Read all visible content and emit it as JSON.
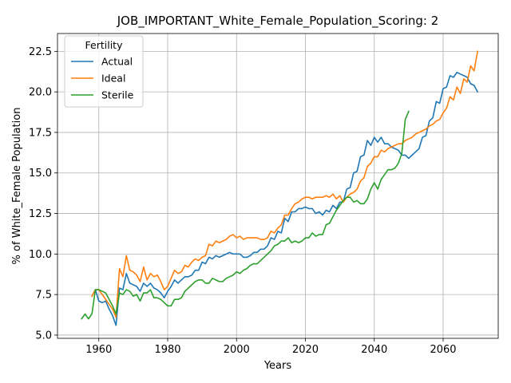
{
  "chart_data": {
    "type": "line",
    "title": "JOB_IMPORTANT_White_Female_Population_Scoring: 2",
    "xlabel": "Years",
    "ylabel": "% of White_Female Population",
    "xlim": [
      1948,
      2076
    ],
    "ylim": [
      4.8,
      23.6
    ],
    "x_ticks": [
      1960,
      1980,
      2000,
      2020,
      2040,
      2060
    ],
    "x_tick_labels": [
      "1960",
      "1980",
      "2000",
      "2020",
      "2040",
      "2060"
    ],
    "y_ticks": [
      5.0,
      7.5,
      10.0,
      12.5,
      15.0,
      17.5,
      20.0,
      22.5
    ],
    "y_tick_labels": [
      "5.0",
      "7.5",
      "10.0",
      "12.5",
      "15.0",
      "17.5",
      "20.0",
      "22.5"
    ],
    "grid": true,
    "legend": {
      "title": "Fertility",
      "position": "top-left"
    },
    "series": [
      {
        "name": "Actual",
        "color": "#1f77b4",
        "x": [
          1958,
          1959,
          1960,
          1961,
          1962,
          1963,
          1964,
          1965,
          1966,
          1967,
          1968,
          1969,
          1970,
          1971,
          1972,
          1973,
          1974,
          1975,
          1976,
          1977,
          1978,
          1979,
          1980,
          1981,
          1982,
          1983,
          1984,
          1985,
          1986,
          1987,
          1988,
          1989,
          1990,
          1991,
          1992,
          1993,
          1994,
          1995,
          1996,
          1997,
          1998,
          1999,
          2000,
          2001,
          2002,
          2003,
          2004,
          2005,
          2006,
          2007,
          2008,
          2009,
          2010,
          2011,
          2012,
          2013,
          2014,
          2015,
          2016,
          2017,
          2018,
          2019,
          2020,
          2021,
          2022,
          2023,
          2024,
          2025,
          2026,
          2027,
          2028,
          2029,
          2030,
          2031,
          2032,
          2033,
          2034,
          2035,
          2036,
          2037,
          2038,
          2039,
          2040,
          2041,
          2042,
          2043,
          2044,
          2045,
          2046,
          2047,
          2048,
          2049,
          2050,
          2051,
          2052,
          2053,
          2054,
          2055,
          2056,
          2057,
          2058,
          2059,
          2060,
          2061,
          2062,
          2063,
          2064,
          2065,
          2066,
          2067,
          2068,
          2069,
          2070
        ],
        "values": [
          7.4,
          7.8,
          7.1,
          7.0,
          7.1,
          6.6,
          6.2,
          5.6,
          7.9,
          7.8,
          8.8,
          8.2,
          8.1,
          8.0,
          7.7,
          8.2,
          8.0,
          8.2,
          7.9,
          7.8,
          7.6,
          7.3,
          7.7,
          8.0,
          8.4,
          8.2,
          8.4,
          8.6,
          8.6,
          8.7,
          9.0,
          9.0,
          9.5,
          9.4,
          9.8,
          9.7,
          9.9,
          9.8,
          9.9,
          10.0,
          10.1,
          10.0,
          10.0,
          10.0,
          9.8,
          9.8,
          9.9,
          10.1,
          10.1,
          10.3,
          10.3,
          10.5,
          11.0,
          10.9,
          11.4,
          11.3,
          12.2,
          12.0,
          12.6,
          12.6,
          12.8,
          12.8,
          12.9,
          12.8,
          12.8,
          12.5,
          12.6,
          12.4,
          12.7,
          12.6,
          13.0,
          12.8,
          13.2,
          13.2,
          14.0,
          14.1,
          15.0,
          15.1,
          16.0,
          16.1,
          17.0,
          16.7,
          17.2,
          16.9,
          17.2,
          16.8,
          16.8,
          16.6,
          16.5,
          16.4,
          16.1,
          16.1,
          15.9,
          16.1,
          16.3,
          16.5,
          17.2,
          17.3,
          18.2,
          18.4,
          19.4,
          19.3,
          20.2,
          20.3,
          21.0,
          20.9,
          21.2,
          21.1,
          21.0,
          20.9,
          20.5,
          20.4,
          20.0
        ]
      },
      {
        "name": "Ideal",
        "color": "#ff7f0e",
        "x": [
          1958,
          1959,
          1960,
          1961,
          1962,
          1963,
          1964,
          1965,
          1966,
          1967,
          1968,
          1969,
          1970,
          1971,
          1972,
          1973,
          1974,
          1975,
          1976,
          1977,
          1978,
          1979,
          1980,
          1981,
          1982,
          1983,
          1984,
          1985,
          1986,
          1987,
          1988,
          1989,
          1990,
          1991,
          1992,
          1993,
          1994,
          1995,
          1996,
          1997,
          1998,
          1999,
          2000,
          2001,
          2002,
          2003,
          2004,
          2005,
          2006,
          2007,
          2008,
          2009,
          2010,
          2011,
          2012,
          2013,
          2014,
          2015,
          2016,
          2017,
          2018,
          2019,
          2020,
          2021,
          2022,
          2023,
          2024,
          2025,
          2026,
          2027,
          2028,
          2029,
          2030,
          2031,
          2032,
          2033,
          2034,
          2035,
          2036,
          2037,
          2038,
          2039,
          2040,
          2041,
          2042,
          2043,
          2044,
          2045,
          2046,
          2047,
          2048,
          2049,
          2050,
          2051,
          2052,
          2053,
          2054,
          2055,
          2056,
          2057,
          2058,
          2059,
          2060,
          2061,
          2062,
          2063,
          2064,
          2065,
          2066,
          2067,
          2068,
          2069,
          2070
        ],
        "values": [
          7.4,
          7.8,
          7.8,
          7.5,
          7.2,
          6.9,
          6.6,
          6.1,
          9.1,
          8.6,
          9.9,
          9.0,
          8.9,
          8.7,
          8.3,
          9.2,
          8.4,
          8.8,
          8.6,
          8.7,
          8.3,
          7.8,
          8.0,
          8.5,
          9.0,
          8.8,
          8.9,
          9.3,
          9.2,
          9.5,
          9.7,
          9.6,
          9.8,
          9.9,
          10.6,
          10.5,
          10.8,
          10.7,
          10.8,
          10.9,
          11.1,
          11.2,
          11.0,
          11.1,
          10.9,
          11.0,
          11.0,
          11.0,
          11.0,
          10.9,
          10.9,
          11.0,
          11.4,
          11.3,
          11.6,
          11.8,
          12.4,
          12.4,
          12.8,
          13.1,
          13.2,
          13.4,
          13.5,
          13.5,
          13.4,
          13.5,
          13.5,
          13.5,
          13.6,
          13.5,
          13.7,
          13.4,
          13.6,
          13.2,
          13.5,
          13.7,
          13.8,
          14.0,
          14.5,
          14.7,
          15.4,
          15.6,
          16.0,
          16.0,
          16.4,
          16.3,
          16.5,
          16.6,
          16.7,
          16.8,
          16.8,
          17.0,
          17.1,
          17.2,
          17.4,
          17.5,
          17.6,
          17.7,
          17.9,
          18.0,
          18.2,
          18.3,
          18.7,
          19.0,
          19.7,
          19.5,
          20.3,
          19.9,
          20.8,
          20.6,
          21.6,
          21.3,
          22.5
        ]
      },
      {
        "name": "Sterile",
        "color": "#2ca02c",
        "x": [
          1955,
          1956,
          1957,
          1958,
          1959,
          1960,
          1961,
          1962,
          1963,
          1964,
          1965,
          1966,
          1967,
          1968,
          1969,
          1970,
          1971,
          1972,
          1973,
          1974,
          1975,
          1976,
          1977,
          1978,
          1979,
          1980,
          1981,
          1982,
          1983,
          1984,
          1985,
          1986,
          1987,
          1988,
          1989,
          1990,
          1991,
          1992,
          1993,
          1994,
          1995,
          1996,
          1997,
          1998,
          1999,
          2000,
          2001,
          2002,
          2003,
          2004,
          2005,
          2006,
          2007,
          2008,
          2009,
          2010,
          2011,
          2012,
          2013,
          2014,
          2015,
          2016,
          2017,
          2018,
          2019,
          2020,
          2021,
          2022,
          2023,
          2024,
          2025,
          2026,
          2027,
          2028,
          2029,
          2030,
          2031,
          2032,
          2033,
          2034,
          2035,
          2036,
          2037,
          2038,
          2039,
          2040,
          2041,
          2042,
          2043,
          2044,
          2045,
          2046,
          2047,
          2048,
          2049,
          2050
        ],
        "values": [
          6.0,
          6.3,
          6.0,
          6.3,
          7.8,
          7.8,
          7.7,
          7.6,
          7.2,
          6.8,
          6.3,
          7.6,
          7.5,
          7.8,
          7.7,
          7.4,
          7.5,
          7.1,
          7.6,
          7.6,
          7.8,
          7.3,
          7.3,
          7.2,
          7.0,
          6.8,
          6.8,
          7.2,
          7.2,
          7.3,
          7.7,
          7.9,
          8.1,
          8.3,
          8.4,
          8.4,
          8.2,
          8.2,
          8.5,
          8.4,
          8.3,
          8.3,
          8.5,
          8.6,
          8.7,
          8.9,
          8.8,
          9.0,
          9.1,
          9.3,
          9.4,
          9.4,
          9.6,
          9.8,
          10.0,
          10.2,
          10.5,
          10.6,
          10.8,
          10.8,
          11.0,
          10.7,
          10.8,
          10.7,
          10.8,
          11.0,
          11.0,
          11.3,
          11.1,
          11.2,
          11.2,
          11.8,
          11.9,
          12.3,
          12.7,
          13.0,
          13.3,
          13.5,
          13.5,
          13.2,
          13.3,
          13.1,
          13.1,
          13.4,
          14.0,
          14.4,
          14.0,
          14.6,
          14.9,
          15.2,
          15.2,
          15.3,
          15.6,
          16.2,
          18.3,
          18.8
        ]
      }
    ]
  }
}
